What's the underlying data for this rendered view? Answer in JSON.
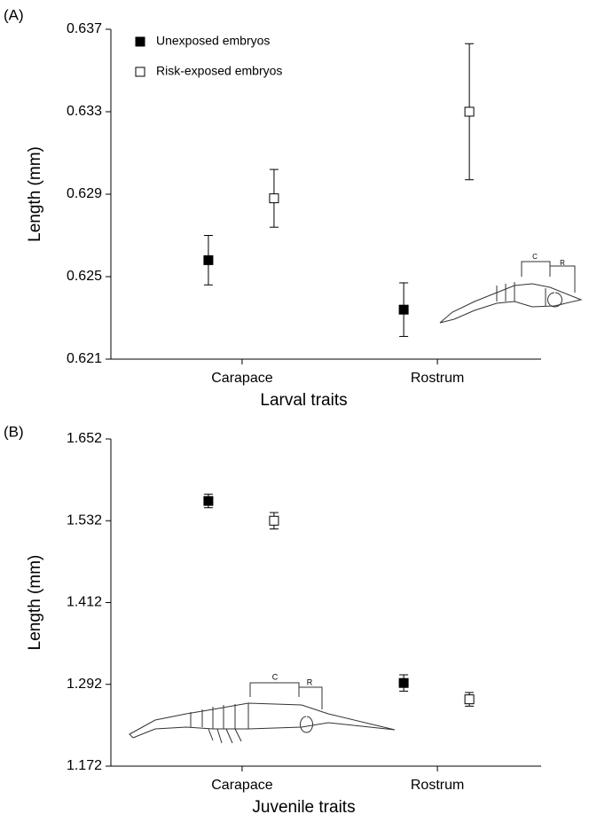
{
  "chart_data": [
    {
      "type": "errorbar",
      "panel_label": "(A)",
      "xlabel": "Larval traits",
      "ylabel": "Length (mm)",
      "categories": [
        "Carapace",
        "Rostrum"
      ],
      "series": [
        {
          "name": "Unexposed embryos",
          "color": "#000000",
          "values": [
            0.6258,
            0.6234
          ],
          "errors": [
            0.0012,
            0.0013
          ]
        },
        {
          "name": "Risk-exposed embryos",
          "color": "#ffffff",
          "values": [
            0.6288,
            0.633
          ],
          "errors": [
            0.0014,
            0.0033
          ]
        }
      ],
      "ylim": [
        0.621,
        0.637
      ],
      "yticks": [
        0.621,
        0.625,
        0.629,
        0.633,
        0.637
      ],
      "legend": "upper left",
      "annotations": [
        "C",
        "R"
      ]
    },
    {
      "type": "errorbar",
      "panel_label": "(B)",
      "xlabel": "Juvenile traits",
      "ylabel": "Length (mm)",
      "categories": [
        "Carapace",
        "Rostrum"
      ],
      "series": [
        {
          "color": "#000000",
          "values": [
            1.561,
            1.294
          ],
          "errors": [
            0.01,
            0.012
          ]
        },
        {
          "color": "#ffffff",
          "values": [
            1.532,
            1.27
          ],
          "errors": [
            0.012,
            0.01
          ]
        }
      ],
      "ylim": [
        1.172,
        1.652
      ],
      "yticks": [
        1.172,
        1.292,
        1.412,
        1.532,
        1.652
      ],
      "annotations": [
        "C",
        "R"
      ]
    }
  ]
}
